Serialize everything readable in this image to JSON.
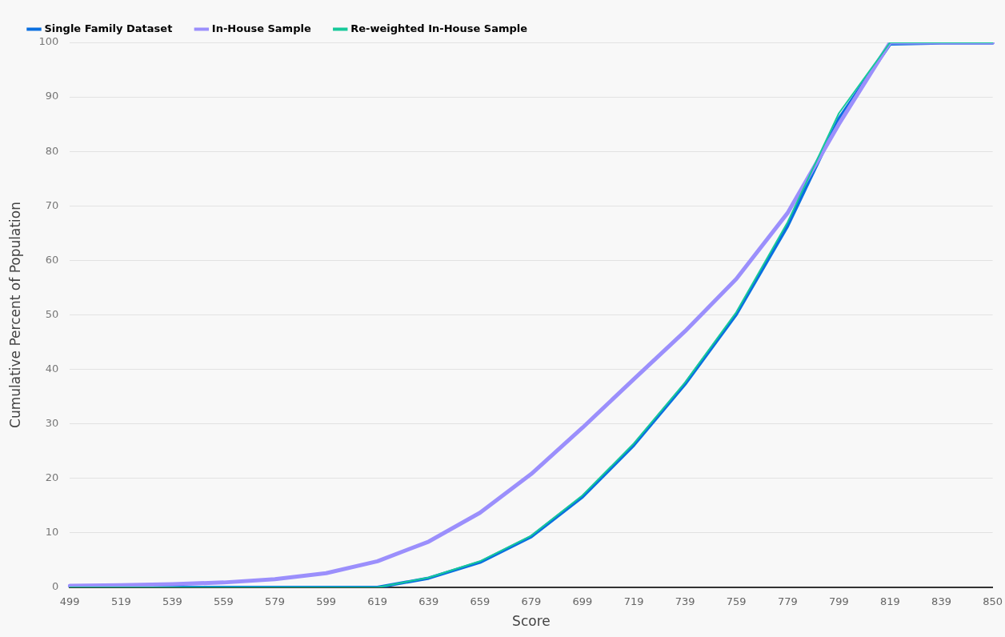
{
  "chart_data": {
    "type": "line",
    "xlabel": "Score",
    "ylabel": "Cumulative Percent of Population",
    "categories": [
      "499",
      "519",
      "539",
      "559",
      "579",
      "599",
      "619",
      "639",
      "659",
      "679",
      "699",
      "719",
      "739",
      "759",
      "779",
      "799",
      "819",
      "839",
      "850"
    ],
    "ylim": [
      0,
      100
    ],
    "yticks": [
      0,
      10,
      20,
      30,
      40,
      50,
      60,
      70,
      80,
      90,
      100
    ],
    "grid": "y",
    "legend": "top left",
    "marker": "none",
    "line_style": "solid",
    "series": [
      {
        "name": "Single Family Dataset",
        "color": "#0a6fe0",
        "values": [
          0,
          0,
          0,
          0,
          0,
          0,
          0,
          1.7,
          4.6,
          9.3,
          16.6,
          26.1,
          37.3,
          50.1,
          66.3,
          86,
          99.7,
          99.9,
          99.9
        ]
      },
      {
        "name": "In-House Sample",
        "color": "#9b8ffc",
        "values": [
          0.3,
          0.4,
          0.6,
          0.9,
          1.5,
          2.6,
          4.8,
          8.4,
          13.7,
          20.8,
          29.3,
          38.2,
          47,
          56.6,
          68.7,
          85,
          100,
          100,
          100
        ]
      },
      {
        "name": "Re-weighted In-House Sample",
        "color": "#17c99a",
        "values": [
          0,
          0,
          0,
          0,
          0,
          0,
          0,
          1.8,
          4.8,
          9.5,
          16.9,
          26.4,
          37.6,
          50.5,
          67,
          87,
          100,
          100,
          100
        ]
      }
    ]
  }
}
